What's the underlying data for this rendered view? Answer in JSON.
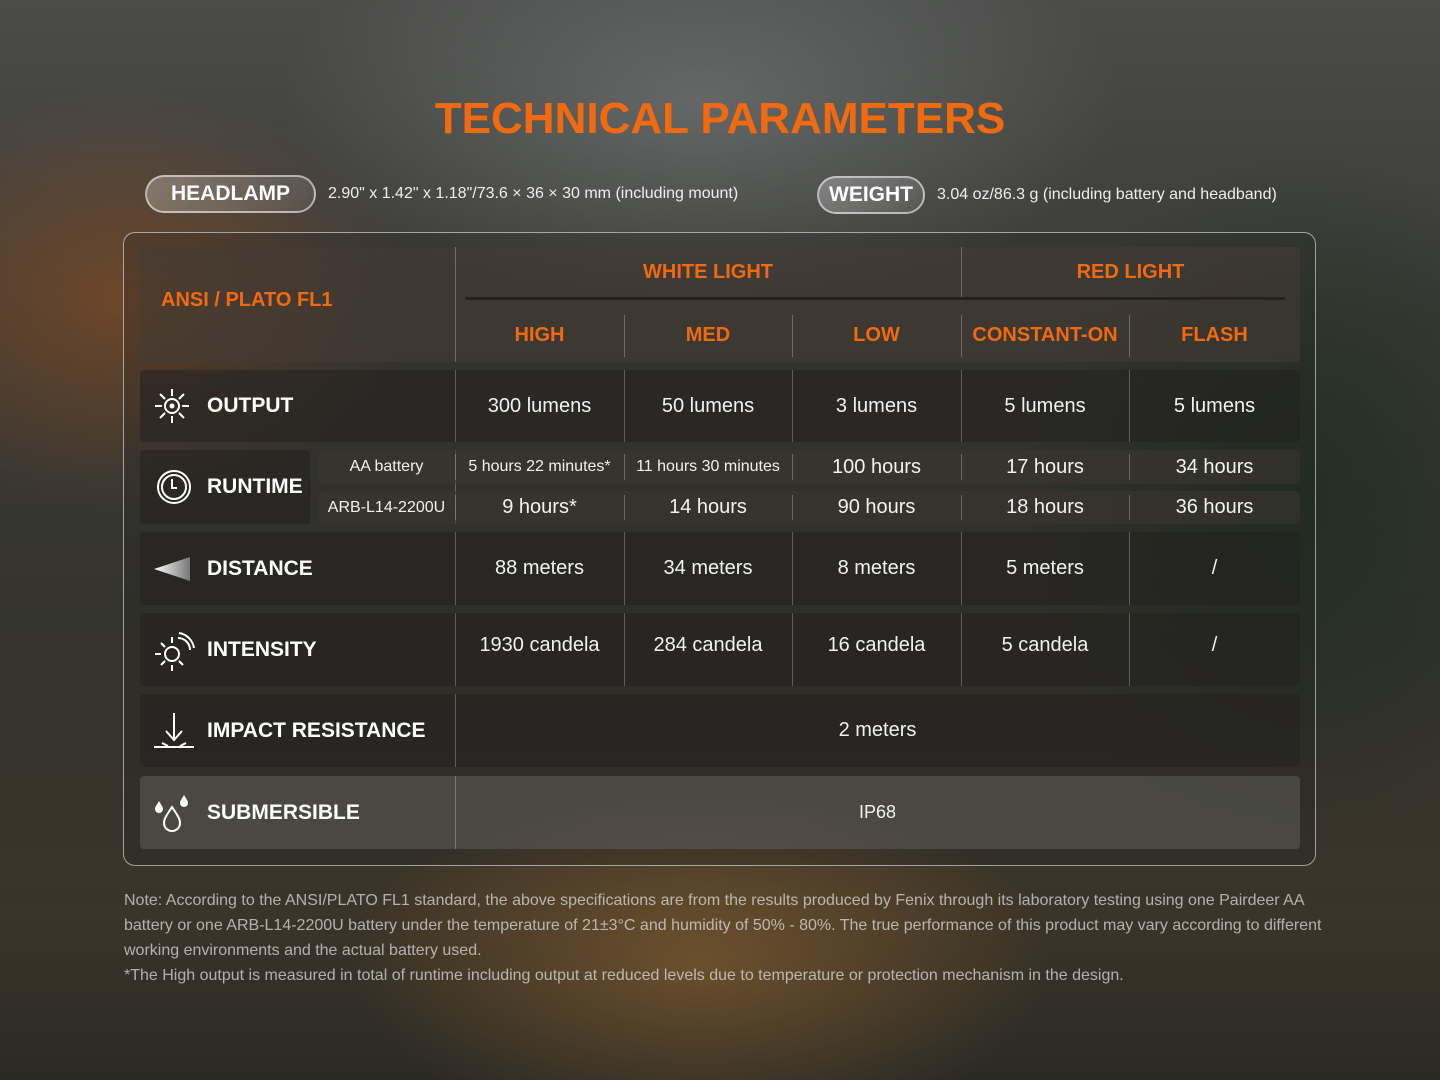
{
  "title": "TECHNICAL PARAMETERS",
  "headlamp": {
    "label": "HEADLAMP",
    "value": "2.90\" x 1.42\" x 1.18\"/73.6 × 36 × 30 mm (including mount)"
  },
  "weight": {
    "label": "WEIGHT",
    "value": "3.04 oz/86.3 g (including battery and headband)"
  },
  "table": {
    "standard": "ANSI / PLATO FL1",
    "groups": [
      "WHITE LIGHT",
      "RED LIGHT"
    ],
    "modes": [
      "HIGH",
      "MED",
      "LOW",
      "CONSTANT-ON",
      "FLASH"
    ],
    "output": {
      "label": "OUTPUT",
      "icon": "sun-icon",
      "values": [
        "300 lumens",
        "50 lumens",
        "3 lumens",
        "5 lumens",
        "5 lumens"
      ]
    },
    "runtime": {
      "label": "RUNTIME",
      "icon": "clock-icon",
      "rows": [
        {
          "battery": "AA battery",
          "values": [
            "5 hours 22 minutes*",
            "11 hours 30 minutes",
            "100 hours",
            "17 hours",
            "34 hours"
          ]
        },
        {
          "battery": "ARB-L14-2200U",
          "values": [
            "9 hours*",
            "14 hours",
            "90 hours",
            "18 hours",
            "36 hours"
          ]
        }
      ]
    },
    "distance": {
      "label": "DISTANCE",
      "icon": "beam-icon",
      "values": [
        "88 meters",
        "34 meters",
        "8 meters",
        "5 meters",
        "/"
      ]
    },
    "intensity": {
      "label": "INTENSITY",
      "icon": "intensity-icon",
      "values": [
        "1930 candela",
        "284 candela",
        "16 candela",
        "5 candela",
        "/"
      ]
    },
    "impact": {
      "label": "IMPACT RESISTANCE",
      "icon": "drop-arrow-icon",
      "value": "2 meters"
    },
    "submersible": {
      "label": "SUBMERSIBLE",
      "icon": "water-drops-icon",
      "value": "IP68"
    }
  },
  "notes": [
    "Note: According to the ANSI/PLATO FL1 standard, the above specifications are from the results produced by Fenix through its laboratory testing using one Pairdeer AA battery or one ARB-L14-2200U battery under the temperature of 21±3°C and humidity of 50% - 80%. The true performance of this product may vary according to different working environments and the actual battery used.",
    "*The High output is measured in total of runtime including output at reduced levels due to temperature or protection mechanism in the design."
  ],
  "colors": {
    "accent": "#f26a10"
  }
}
